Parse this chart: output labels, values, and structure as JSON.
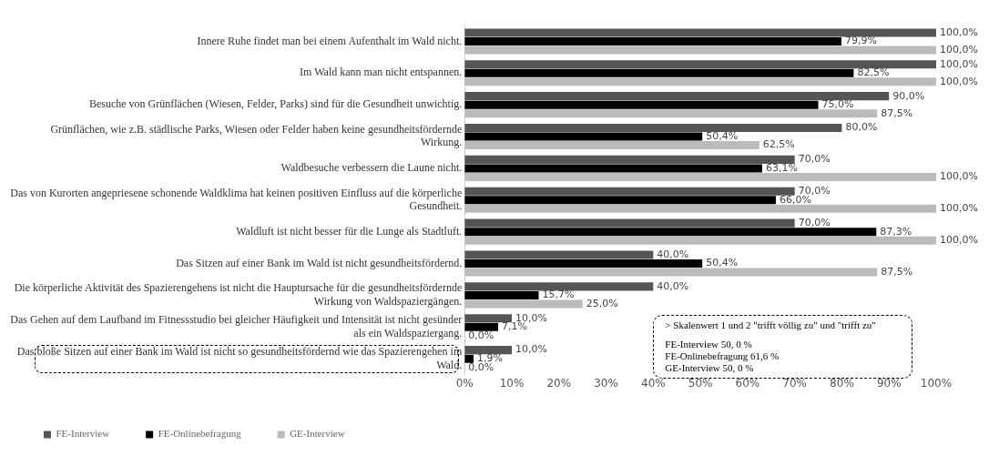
{
  "chart_data": {
    "type": "bar",
    "orientation": "horizontal",
    "categories": [
      "Innere Ruhe findet man bei einem Aufenthalt im Wald nicht.",
      "Im Wald kann man nicht entspannen.",
      "Besuche von Grünflächen (Wiesen, Felder, Parks) sind für die Gesundheit unwichtig.",
      "Grünflächen, wie z.B. städlische Parks, Wiesen oder Felder haben keine gesundheitsfördernde Wirkung.",
      "Waldbesuche verbessern die Laune nicht.",
      "Das von Kurorten angepriesene schonende Waldklima hat keinen positiven Einfluss auf die körperliche Gesundheit.",
      "Waldluft ist nicht besser für die Lunge als Stadtluft.",
      "Das Sitzen auf einer Bank im Wald ist nicht gesundheitsfördernd.",
      "Die körperliche Aktivität des Spazierengehens ist nicht die Hauptursache für die gesundheitsfördernde Wirkung von Waldspaziergängen.",
      "Das Gehen auf dem Laufband im Fitnessstudio bei gleicher Häufigkeit und Intensität ist nicht gesünder als ein Waldspaziergang.",
      "Das bloße Sitzen auf einer Bank im Wald ist nicht so gesundheitsfördernd wie das Spazierengehen im Wald."
    ],
    "series": [
      {
        "name": "FE-Interview",
        "color": "#555555",
        "values": [
          100,
          100,
          90,
          80,
          70,
          70,
          70,
          40,
          40,
          10,
          10
        ],
        "value_labels": [
          "100,0%",
          "100,0%",
          "90,0%",
          "80,0%",
          "70,0%",
          "70,0%",
          "70,0%",
          "40,0%",
          "40,0%",
          "10,0%",
          "10,0%"
        ]
      },
      {
        "name": "FE-Onlinebefragung",
        "color": "#000000",
        "values": [
          79.9,
          82.5,
          75,
          50.4,
          63.1,
          66,
          87.3,
          50.4,
          15.7,
          7.1,
          1.9
        ],
        "value_labels": [
          "79,9%",
          "82,5%",
          "75,0%",
          "50,4%",
          "63,1%",
          "66,0%",
          "87,3%",
          "50,4%",
          "15,7%",
          "7,1%",
          "1,9%"
        ]
      },
      {
        "name": "GE-Interview",
        "color": "#bbbbbb",
        "values": [
          100,
          100,
          87.5,
          62.5,
          100,
          100,
          100,
          87.5,
          25,
          0,
          0
        ],
        "value_labels": [
          "100,0%",
          "100,0%",
          "87,5%",
          "62,5%",
          "100,0%",
          "100,0%",
          "100,0%",
          "87,5%",
          "25,0%",
          "0,0%",
          "0,0%"
        ]
      }
    ],
    "xlim": [
      0,
      100
    ],
    "xticks": [
      {
        "value": 0,
        "label": "0%"
      },
      {
        "value": 10,
        "label": "10%"
      },
      {
        "value": 20,
        "label": "20%"
      },
      {
        "value": 30,
        "label": "30%"
      },
      {
        "value": 40,
        "label": "40%"
      },
      {
        "value": 50,
        "label": "50%"
      },
      {
        "value": 60,
        "label": "60%"
      },
      {
        "value": 70,
        "label": "70%"
      },
      {
        "value": 80,
        "label": "80%"
      },
      {
        "value": 90,
        "label": "90%"
      },
      {
        "value": 100,
        "label": "100%"
      }
    ],
    "grid": false,
    "legend": "bottom left",
    "annotations": [
      "> Skalenwert 1 und 2 \"trifft völlig zu\" und \"trifft zu\"",
      "FE-Interview 50, 0 %",
      "FE-Onlinebefragung 61,6 %",
      "GE-Interview 50, 0 %"
    ]
  }
}
